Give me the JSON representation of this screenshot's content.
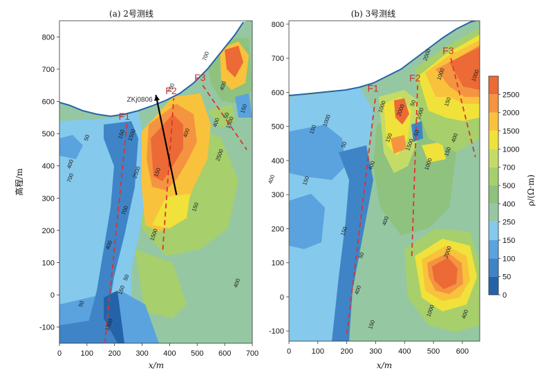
{
  "chart_data": [
    {
      "type": "heatmap",
      "title": "(a) 2号测线",
      "xlabel": "x/m",
      "ylabel": "高程/m",
      "xlim": [
        0,
        700
      ],
      "ylim": [
        -150,
        850
      ],
      "xticks": [
        0,
        100,
        200,
        300,
        400,
        500,
        600,
        700
      ],
      "yticks": [
        -100,
        0,
        100,
        200,
        300,
        400,
        500,
        600,
        700,
        800
      ],
      "faults": [
        {
          "name": "F1",
          "line": [
            [
              165,
              -150
            ],
            [
              245,
              530
            ]
          ]
        },
        {
          "name": "F2",
          "line": [
            [
              375,
              140
            ],
            [
              415,
              610
            ]
          ]
        },
        {
          "name": "F3",
          "line": [
            [
              520,
              650
            ],
            [
              680,
              450
            ]
          ]
        }
      ],
      "drill": {
        "name": "ZKj0806",
        "line": [
          [
            425,
            310
          ],
          [
            350,
            620
          ]
        ]
      },
      "contour_labels": [
        "50",
        "150",
        "400",
        "700",
        "1500",
        "2500",
        "700",
        "400",
        "150",
        "1500",
        "50",
        "150",
        "400",
        "700",
        "1500",
        "150",
        "50",
        "400",
        "2500",
        "150",
        "400",
        "400",
        "1500",
        "700",
        "400",
        "50"
      ]
    },
    {
      "type": "heatmap",
      "title": "(b) 3号测线",
      "xlabel": "x/m",
      "ylabel": "",
      "xlim": [
        0,
        660
      ],
      "ylim": [
        -130,
        810
      ],
      "xticks": [
        0,
        100,
        200,
        300,
        400,
        500,
        600
      ],
      "yticks": [
        -100,
        0,
        100,
        200,
        300,
        400,
        500,
        600,
        700,
        800
      ],
      "faults": [
        {
          "name": "F1",
          "line": [
            [
              200,
              -110
            ],
            [
              300,
              590
            ]
          ]
        },
        {
          "name": "F2",
          "line": [
            [
              425,
              120
            ],
            [
              445,
              620
            ]
          ]
        },
        {
          "name": "F3",
          "line": [
            [
              560,
              700
            ],
            [
              645,
              410
            ]
          ]
        }
      ],
      "contour_labels": [
        "150",
        "50",
        "400",
        "1000",
        "2000",
        "1000",
        "50",
        "1000",
        "150",
        "400",
        "150",
        "50",
        "150",
        "2000",
        "1000",
        "400",
        "150",
        "1500",
        "2000",
        "1000",
        "400",
        "150",
        "1000",
        "400",
        "50",
        "150",
        "1000"
      ]
    }
  ],
  "colorbar": {
    "label": "ρ/(Ω·m)",
    "ticks": [
      "0",
      "50",
      "100",
      "150",
      "250",
      "400",
      "500",
      "700",
      "1000",
      "1500",
      "2000",
      "2500"
    ],
    "colors": [
      "#2563a8",
      "#3f84c6",
      "#5aa3de",
      "#85c9ec",
      "#95c7a3",
      "#8ec27e",
      "#a7cf6c",
      "#c4dc67",
      "#f0e23a",
      "#f9c23c",
      "#f49440",
      "#ec6a36"
    ]
  }
}
